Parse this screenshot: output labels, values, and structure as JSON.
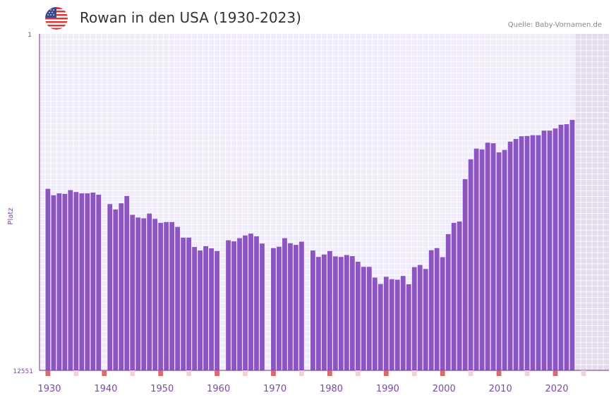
{
  "header": {
    "title": "Rowan in den USA (1930-2023)",
    "source": "Quelle: Baby-Vornamen.de",
    "flag_icon": "us-flag-icon"
  },
  "colors": {
    "bar": "#8b55c4",
    "plot_bg": "#f1ecf9",
    "future_bg": "#e3dced",
    "grid": "#ffffff",
    "axis": "#7a2a8c",
    "marker": "#d86a6a",
    "marker_light": "#f5d2d2"
  },
  "chart_data": {
    "type": "bar",
    "title": "Rowan in den USA (1930-2023)",
    "ylabel": "Platz",
    "xlabel": "",
    "y_inverted": true,
    "ylim": [
      1,
      12551
    ],
    "y_tick_labels": [
      "1",
      "12551"
    ],
    "xlim": [
      1928,
      2029
    ],
    "x_tick_labels": [
      "1930",
      "1940",
      "1950",
      "1960",
      "1970",
      "1980",
      "1990",
      "2000",
      "2010",
      "2020"
    ],
    "future_from": 2023,
    "x": [
      1929,
      1930,
      1931,
      1932,
      1933,
      1934,
      1935,
      1936,
      1937,
      1938,
      1939,
      1940,
      1941,
      1942,
      1943,
      1944,
      1945,
      1946,
      1947,
      1948,
      1949,
      1950,
      1951,
      1952,
      1953,
      1954,
      1955,
      1956,
      1957,
      1958,
      1959,
      1960,
      1961,
      1962,
      1963,
      1964,
      1965,
      1966,
      1967,
      1968,
      1969,
      1970,
      1971,
      1972,
      1973,
      1974,
      1975,
      1976,
      1977,
      1978,
      1979,
      1980,
      1981,
      1982,
      1983,
      1984,
      1985,
      1986,
      1987,
      1988,
      1989,
      1990,
      1991,
      1992,
      1993,
      1994,
      1995,
      1996,
      1997,
      1998,
      1999,
      2000,
      2001,
      2002,
      2003,
      2004,
      2005,
      2006,
      2007,
      2008,
      2009,
      2010,
      2011,
      2012,
      2013,
      2014,
      2015,
      2016,
      2017,
      2018,
      2019,
      2020,
      2021,
      2022
    ],
    "values": [
      5780,
      6020,
      5950,
      5970,
      5830,
      5900,
      5950,
      5950,
      5920,
      6000,
      null,
      6350,
      6550,
      6320,
      6050,
      6750,
      6850,
      6880,
      6700,
      6900,
      7050,
      7020,
      7020,
      7200,
      7600,
      7600,
      7950,
      8080,
      7920,
      8000,
      8100,
      null,
      7700,
      7740,
      7620,
      7520,
      7450,
      7550,
      7820,
      null,
      7990,
      7940,
      7620,
      7810,
      7870,
      7750,
      null,
      8080,
      8320,
      8230,
      8100,
      8300,
      8320,
      8250,
      8290,
      8500,
      8690,
      8690,
      9090,
      9330,
      9060,
      9150,
      9170,
      9030,
      9340,
      8700,
      8620,
      8770,
      8070,
      7990,
      8330,
      7470,
      7050,
      7000,
      5420,
      4680,
      4280,
      4310,
      4060,
      4080,
      4420,
      4330,
      4020,
      3920,
      3820,
      3810,
      3780,
      3780,
      3610,
      3610,
      3530,
      3390,
      3370,
      3210
    ]
  }
}
